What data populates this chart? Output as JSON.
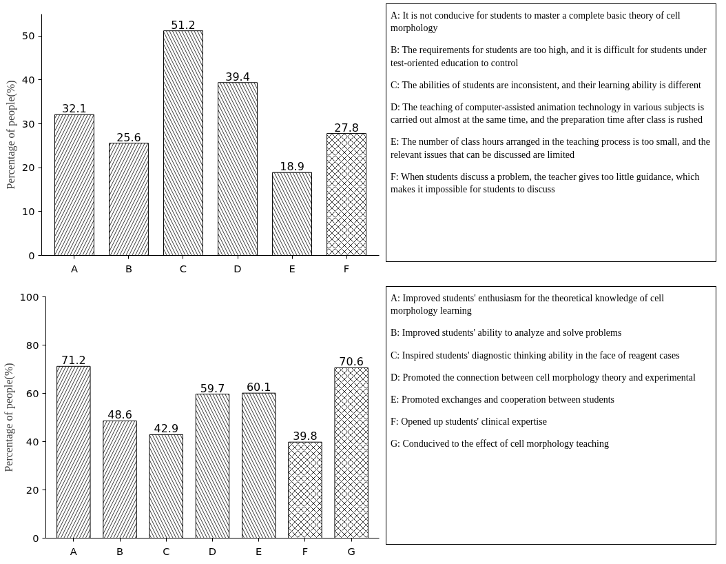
{
  "chart_data": [
    {
      "type": "bar",
      "ylabel": "Percentage of people(%)",
      "categories": [
        "A",
        "B",
        "C",
        "D",
        "E",
        "F"
      ],
      "values": [
        32.1,
        25.6,
        51.2,
        39.4,
        18.9,
        27.8
      ],
      "color": "#ffffff",
      "data_labels": true,
      "ylim": [
        0,
        55
      ],
      "yticks": [
        0,
        10,
        20,
        30,
        40,
        50
      ],
      "annotations": [
        "A: It is not conducive for students to master a complete basic theory of cell morphology",
        "B: The requirements for students are too high, and it is difficult for students under test-oriented education to control",
        "C: The abilities of students are inconsistent, and their learning ability is different",
        "D: The teaching of computer-assisted animation technology in various subjects is carried out almost at the same time, and the preparation time after class is rushed",
        "E: The number of class hours arranged in the teaching process is too small, and the relevant issues that can be discussed are limited",
        "F: When students discuss a problem, the teacher gives too little guidance, which makes it impossible for students to discuss"
      ]
    },
    {
      "type": "bar",
      "ylabel": "Percentage of people(%)",
      "categories": [
        "A",
        "B",
        "C",
        "D",
        "E",
        "F",
        "G"
      ],
      "values": [
        71.2,
        48.6,
        42.9,
        59.7,
        60.1,
        39.8,
        70.6
      ],
      "color": "#ffffff",
      "data_labels": true,
      "ylim": [
        0,
        100
      ],
      "yticks": [
        0,
        20,
        40,
        60,
        80,
        100
      ],
      "annotations": [
        "A: Improved students' enthusiasm for the theoretical knowledge of cell morphology learning",
        "B: Improved students' ability to analyze and solve problems",
        "C: Inspired students' diagnostic thinking ability in the face of reagent cases",
        "D: Promoted the connection between cell morphology theory and experimental",
        "E: Promoted exchanges and cooperation between students",
        "F: Opened up students' clinical expertise",
        "G: Conducived to the effect of cell morphology teaching"
      ]
    }
  ]
}
